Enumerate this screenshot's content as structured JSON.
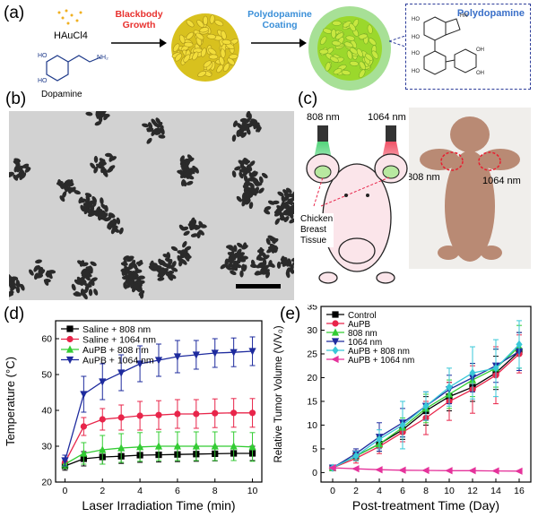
{
  "panel_a": {
    "label": "(a)",
    "reagent_1": "HAuCl4",
    "reagent_2": "Dopamine",
    "step_1_line1": "Blackbody",
    "step_1_line2": "Growth",
    "step_2_line1": "Polydopamine",
    "step_2_line2": "Coating",
    "inset_label": "Polydopamine",
    "colors": {
      "step1": "#e8322f",
      "step2": "#3a8fd8",
      "inset_border": "#2d3d9a"
    }
  },
  "panel_b": {
    "label": "(b)"
  },
  "panel_c": {
    "label": "(c)",
    "laser_1": "808 nm",
    "laser_2": "1064 nm",
    "tissue_line1": "Chicken",
    "tissue_line2": "Breast",
    "tissue_line3": "Tissue",
    "photo_label_1": "808 nm",
    "photo_label_2": "1064 nm"
  },
  "chart_data": [
    {
      "panel": "(d)",
      "type": "line",
      "xlabel": "Laser Irradiation Time (min)",
      "ylabel": "Temperature (°C)",
      "xlim": [
        -0.5,
        10.5
      ],
      "ylim": [
        20,
        65
      ],
      "xticks": [
        0,
        2,
        4,
        6,
        8,
        10
      ],
      "yticks": [
        20,
        30,
        40,
        50,
        60
      ],
      "legend_position": "top-left",
      "x": [
        0,
        1,
        2,
        3,
        4,
        5,
        6,
        7,
        8,
        9,
        10
      ],
      "series": [
        {
          "name": "Saline + 808 nm",
          "color": "#000000",
          "marker": "square",
          "values": [
            24.5,
            26.5,
            27,
            27.2,
            27.5,
            27.6,
            27.7,
            27.8,
            27.9,
            28,
            28
          ],
          "err": [
            1.2,
            2.0,
            2.0,
            2.0,
            2.0,
            2.0,
            2.0,
            2.0,
            2.0,
            2.0,
            2.0
          ]
        },
        {
          "name": "Saline + 1064 nm",
          "color": "#e8254a",
          "marker": "circle",
          "values": [
            25.5,
            35.5,
            37.5,
            38,
            38.5,
            38.7,
            39,
            39,
            39.2,
            39.3,
            39.3
          ],
          "err": [
            1.2,
            2.5,
            3.0,
            3.5,
            4.0,
            4.0,
            4.0,
            4.0,
            4.0,
            4.0,
            4.0
          ]
        },
        {
          "name": "AuPB + 808 nm",
          "color": "#33cc33",
          "marker": "triangle-up",
          "values": [
            25,
            28,
            29,
            29.5,
            29.8,
            30,
            30,
            30,
            30,
            30,
            29.8
          ],
          "err": [
            1.2,
            3.0,
            4.0,
            4.0,
            4.0,
            4.0,
            4.0,
            4.0,
            4.0,
            4.0,
            4.0
          ]
        },
        {
          "name": "AuPB + 1064 nm",
          "color": "#1e2b9e",
          "marker": "triangle-down",
          "values": [
            26,
            44.5,
            48,
            50.5,
            53,
            54,
            55,
            55.5,
            56,
            56.2,
            56.5
          ],
          "err": [
            1.5,
            5.0,
            5.0,
            5.0,
            5.0,
            4.5,
            4.5,
            4.0,
            4.0,
            4.0,
            4.0
          ]
        }
      ]
    },
    {
      "panel": "(e)",
      "type": "line",
      "xlabel": "Post-treatment Time (Day)",
      "ylabel": "Relative Tumor Volume (V/V₀)",
      "xlim": [
        -1,
        17
      ],
      "ylim": [
        -2,
        35
      ],
      "xticks": [
        0,
        2,
        4,
        6,
        8,
        10,
        12,
        14,
        16
      ],
      "yticks": [
        0,
        5,
        10,
        15,
        20,
        25,
        30,
        35
      ],
      "legend_position": "top-left",
      "x": [
        0,
        2,
        4,
        6,
        8,
        10,
        12,
        14,
        16
      ],
      "series": [
        {
          "name": "Control",
          "color": "#000000",
          "marker": "square",
          "values": [
            1,
            3.5,
            6,
            9,
            13,
            16,
            18,
            21,
            25.5
          ],
          "err": [
            0.2,
            1.0,
            1.5,
            2.0,
            3.0,
            3.0,
            3.0,
            3.5,
            4.0
          ]
        },
        {
          "name": "AuPB",
          "color": "#e8254a",
          "marker": "circle",
          "values": [
            1,
            3,
            5.5,
            8.5,
            11.5,
            15,
            17.5,
            20.5,
            25
          ],
          "err": [
            0.2,
            1.0,
            1.5,
            2.0,
            3.5,
            4.0,
            5.0,
            6.0,
            4.0
          ]
        },
        {
          "name": "808 nm",
          "color": "#33cc33",
          "marker": "triangle-up",
          "values": [
            1,
            3.5,
            6,
            9.5,
            13.5,
            16.5,
            19.5,
            22,
            26.5
          ],
          "err": [
            0.2,
            1.0,
            1.5,
            2.0,
            3.0,
            3.0,
            3.5,
            4.0,
            4.5
          ]
        },
        {
          "name": "1064 nm",
          "color": "#1e2b9e",
          "marker": "triangle-down",
          "values": [
            1,
            4,
            7.5,
            10.5,
            14,
            17.5,
            20,
            22.5,
            25.5
          ],
          "err": [
            0.2,
            1.0,
            3.0,
            3.0,
            3.0,
            3.0,
            3.0,
            3.5,
            4.0
          ]
        },
        {
          "name": "AuPB + 808 nm",
          "color": "#39c8d8",
          "marker": "diamond",
          "values": [
            1,
            3.5,
            7,
            10,
            14,
            18,
            21,
            22,
            27
          ],
          "err": [
            0.2,
            1.0,
            2.0,
            5.0,
            3.0,
            4.0,
            5.5,
            6.0,
            5.0
          ]
        },
        {
          "name": "AuPB + 1064 nm",
          "color": "#e5339b",
          "marker": "triangle-left",
          "values": [
            1,
            0.8,
            0.6,
            0.5,
            0.45,
            0.4,
            0.4,
            0.35,
            0.3
          ],
          "err": [
            0.1,
            0.1,
            0.1,
            0.1,
            0.1,
            0.1,
            0.1,
            0.1,
            0.1
          ]
        }
      ]
    }
  ]
}
